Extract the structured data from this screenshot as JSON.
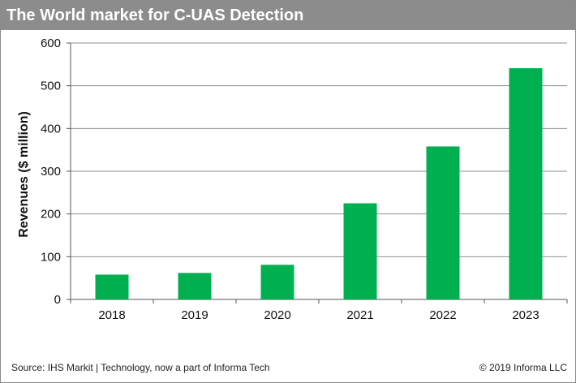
{
  "header": {
    "title": "The World market for C-UAS Detection"
  },
  "footer": {
    "source": "Source: IHS Markit | Technology, now a part of Informa Tech",
    "copyright": "© 2019 Informa LLC"
  },
  "colors": {
    "bar": "#00b050",
    "title_bar": "#8c8c8c",
    "grid": "#8f8f8f"
  },
  "chart_data": {
    "type": "bar",
    "title": "",
    "xlabel": "",
    "ylabel": "Revenues ($ million)",
    "categories": [
      "2018",
      "2019",
      "2020",
      "2021",
      "2022",
      "2023"
    ],
    "values": [
      58,
      62,
      81,
      225,
      358,
      541
    ],
    "ylim": [
      0,
      600
    ],
    "yticks": [
      0,
      100,
      200,
      300,
      400,
      500,
      600
    ],
    "grid": true,
    "legend": "none"
  }
}
